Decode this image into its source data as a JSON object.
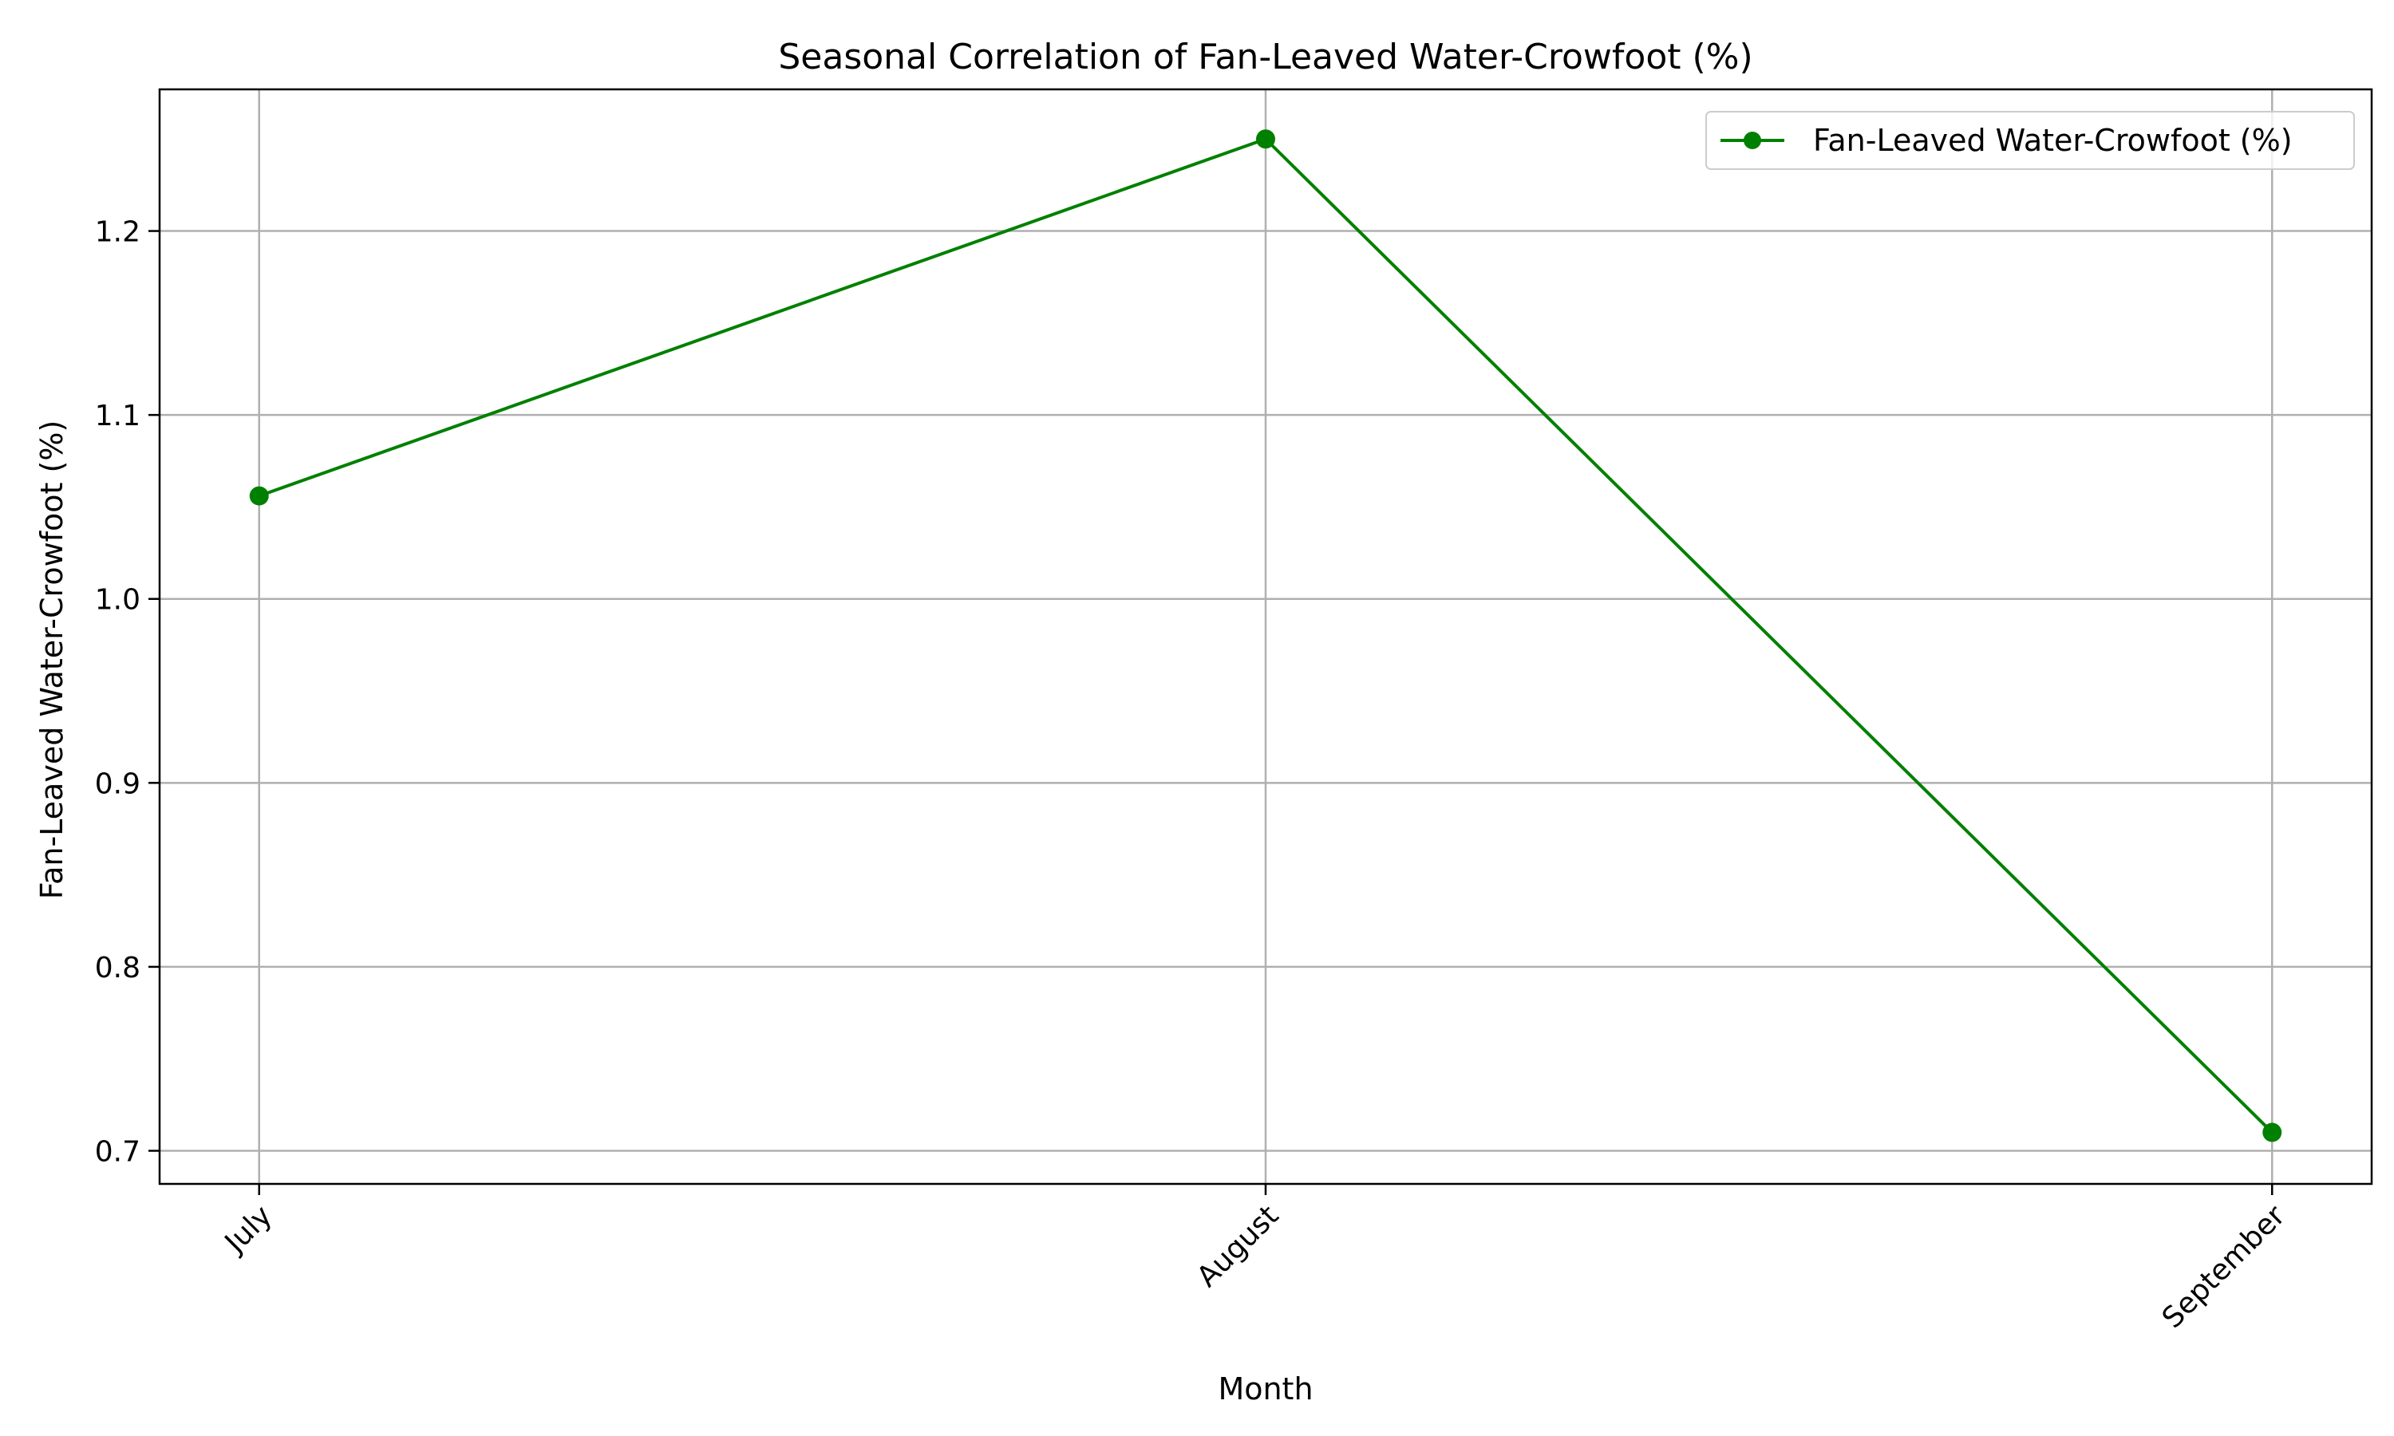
{
  "chart_data": {
    "type": "line",
    "title": "Seasonal Correlation of Fan-Leaved Water-Crowfoot (%)",
    "xlabel": "Month",
    "ylabel": "Fan-Leaved Water-Crowfoot (%)",
    "categories": [
      "July",
      "August",
      "September"
    ],
    "series": [
      {
        "name": "Fan-Leaved Water-Crowfoot (%)",
        "values": [
          1.056,
          1.25,
          0.71
        ],
        "color": "#008000",
        "marker": "circle"
      }
    ],
    "ylim": [
      0.682,
      1.277
    ],
    "yticks": [
      0.7,
      0.8,
      0.9,
      1.0,
      1.1,
      1.2
    ],
    "ytick_labels": [
      "0.7",
      "0.8",
      "0.9",
      "1.0",
      "1.1",
      "1.2"
    ],
    "xtick_rotation": -45,
    "grid": true,
    "legend_position": "top-right"
  }
}
